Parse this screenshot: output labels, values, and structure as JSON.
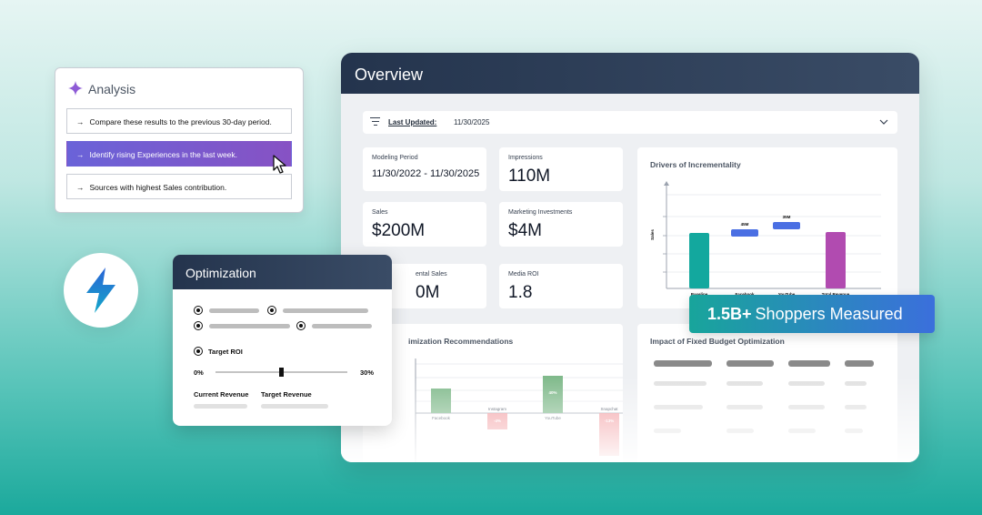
{
  "analysis": {
    "title": "Analysis",
    "items": [
      {
        "arrow": "→",
        "label": "Compare these results to the previous 30-day period."
      },
      {
        "arrow": "→",
        "label": "Identify rising Experiences in the last week."
      },
      {
        "arrow": "→",
        "label": "Sources with highest Sales contribution."
      }
    ]
  },
  "overview": {
    "title": "Overview",
    "filter": {
      "label": "Last Updated:",
      "value": "11/30/2025"
    },
    "kpis": [
      {
        "label": "Modeling Period",
        "value": "11/30/2022 - 11/30/2025"
      },
      {
        "label": "Impressions",
        "value": "110M"
      },
      {
        "label": "Sales",
        "value": "$200M"
      },
      {
        "label": "Marketing Investments",
        "value": "$4M"
      },
      {
        "label": "ental Sales",
        "value": "0M"
      },
      {
        "label": "Media ROI",
        "value": "1.8"
      }
    ],
    "drivers": {
      "title": "Drivers of Incrementality"
    },
    "recommendations": {
      "title": "imization Recommendations"
    },
    "impact": {
      "title": "Impact of Fixed Budget Optimization"
    }
  },
  "chart_data": [
    {
      "type": "bar",
      "title": "Drivers of Incrementality",
      "ylabel": "Sales",
      "categories": [
        "Baseline",
        "Facebook",
        "YouTube",
        "Total Revenue"
      ],
      "data_labels": [
        "",
        "45M",
        "35M",
        ""
      ],
      "colors": [
        "#13a89e",
        "#4a6fe3",
        "#4a6fe3",
        "#b14bb0"
      ]
    },
    {
      "type": "bar",
      "title": "imization Recommendations",
      "categories": [
        "Facebook",
        "Instagram",
        "YouTube",
        "Snapchat"
      ],
      "data_labels": [
        "",
        "-4%",
        "40%",
        "-13%"
      ],
      "values": [
        4,
        -4,
        40,
        -13
      ]
    }
  ],
  "optimization": {
    "title": "Optimization",
    "target_roi_label": "Target ROI",
    "slider": {
      "min_label": "0%",
      "max_label": "30%",
      "value_fraction": 0.5
    },
    "current_revenue_label": "Current Revenue",
    "target_revenue_label": "Target Revenue"
  },
  "badge": {
    "bold": "1.5B+",
    "text": "Shoppers Measured"
  },
  "icons": [
    "sparkle-icon",
    "arrow-right-icon",
    "cursor-icon",
    "filter-icon",
    "chevron-down-icon",
    "lightning-icon"
  ],
  "colors": {
    "accent_purple": "#8752c4",
    "teal": "#13a89e",
    "navy": "#24344d",
    "blue": "#4a6fe3"
  }
}
